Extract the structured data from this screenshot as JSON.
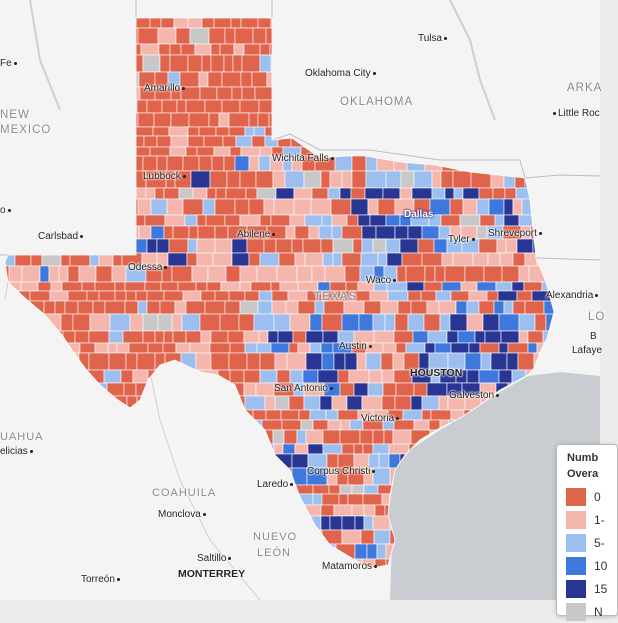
{
  "map": {
    "state_label": "TEXAS",
    "neighbor_labels": {
      "oklahoma": "OKLAHOMA",
      "new_mexico_1": "NEW",
      "new_mexico_2": "MEXICO",
      "arkansas": "ARKA",
      "louisiana": "LO",
      "coahuila": "COAHUILA",
      "nuevo_leon_1": "NUEVO",
      "nuevo_leon_2": "LEÓN",
      "chihuahua": "UAHUA"
    },
    "cities": {
      "tulsa": "Tulsa",
      "oklahoma_city": "Oklahoma City",
      "little_rock": "Little Roc",
      "santa_fe": "Fe",
      "amarillo": "Amarillo",
      "lubbock": "Lubbock",
      "wichita_falls": "Wichita Falls",
      "dallas": "Dallas",
      "tyler": "Tyler",
      "shreveport": "Shreveport",
      "abilene": "Abilene",
      "carlsbad": "Carlsbad",
      "odessa": "Odessa",
      "waco": "Waco",
      "alexandria": "Alexandria",
      "austin": "Austin",
      "houston": "HOUSTON",
      "baton_rouge": "B",
      "lafayette": "Lafaye",
      "san_antonio": "San Antonio",
      "galveston": "Galveston",
      "victoria": "Victoria",
      "delicias": "elicias",
      "corpus_christi": "Corpus Christi",
      "laredo": "Laredo",
      "monclova": "Monclova",
      "saltillo": "Saltillo",
      "monterrey": "MONTERREY",
      "torreon": "Torreón",
      "matamoros": "Matamoros",
      "el_paso_edge": "o"
    }
  },
  "legend": {
    "title_line1": "Numb",
    "title_line2": "Overa",
    "items": [
      {
        "label": "0",
        "color": "#e0634b"
      },
      {
        "label": "1-",
        "color": "#f5b6ad"
      },
      {
        "label": "5-",
        "color": "#9dbff0"
      },
      {
        "label": "10",
        "color": "#3f78dc"
      },
      {
        "label": "15",
        "color": "#283593"
      },
      {
        "label": "N",
        "color": "#c8c8c8"
      }
    ]
  },
  "colors": {
    "land": "#f4f4f4",
    "water": "#c9ccd0",
    "tx_base": "#e0634b",
    "c0": "#e0634b",
    "c1": "#f5b6ad",
    "c2": "#9dbff0",
    "c3": "#3f78dc",
    "c4": "#283593",
    "na": "#c8c8c8"
  }
}
